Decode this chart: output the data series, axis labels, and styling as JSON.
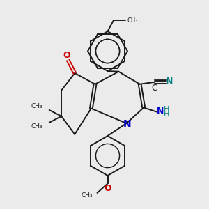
{
  "background_color": "#ebebeb",
  "bond_color": "#1a1a1a",
  "oxygen_color": "#cc0000",
  "nitrogen_color": "#0000cc",
  "teal_color": "#008080",
  "figure_size": [
    3.0,
    3.0
  ],
  "dpi": 100,
  "xlim": [
    0,
    10
  ],
  "ylim": [
    0,
    10
  ]
}
